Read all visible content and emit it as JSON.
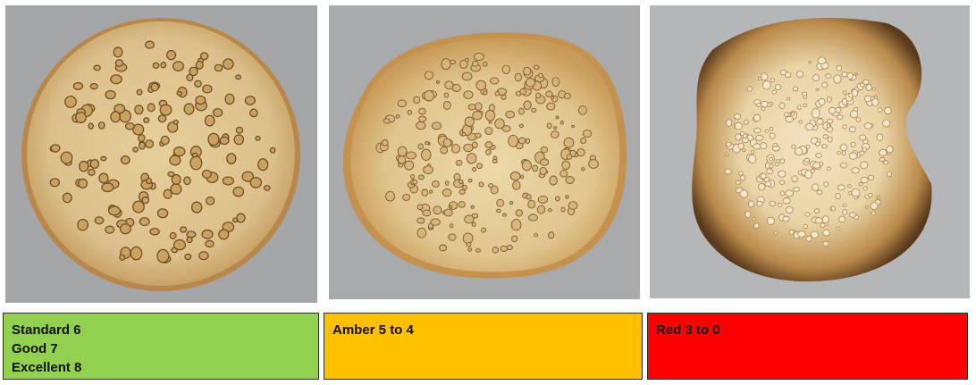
{
  "ratings": [
    {
      "lines": [
        "Standard 6",
        "Good 7",
        "Excellent 8"
      ],
      "color": "#92d050"
    },
    {
      "lines": [
        "Amber 5 to 4"
      ],
      "color": "#ffc000"
    },
    {
      "lines": [
        "Red 3 to 0"
      ],
      "color": "#ff0000"
    }
  ],
  "photos": [
    {
      "subject": "crumpet-photo-standard"
    },
    {
      "subject": "crumpet-photo-amber"
    },
    {
      "subject": "crumpet-photo-red"
    }
  ]
}
